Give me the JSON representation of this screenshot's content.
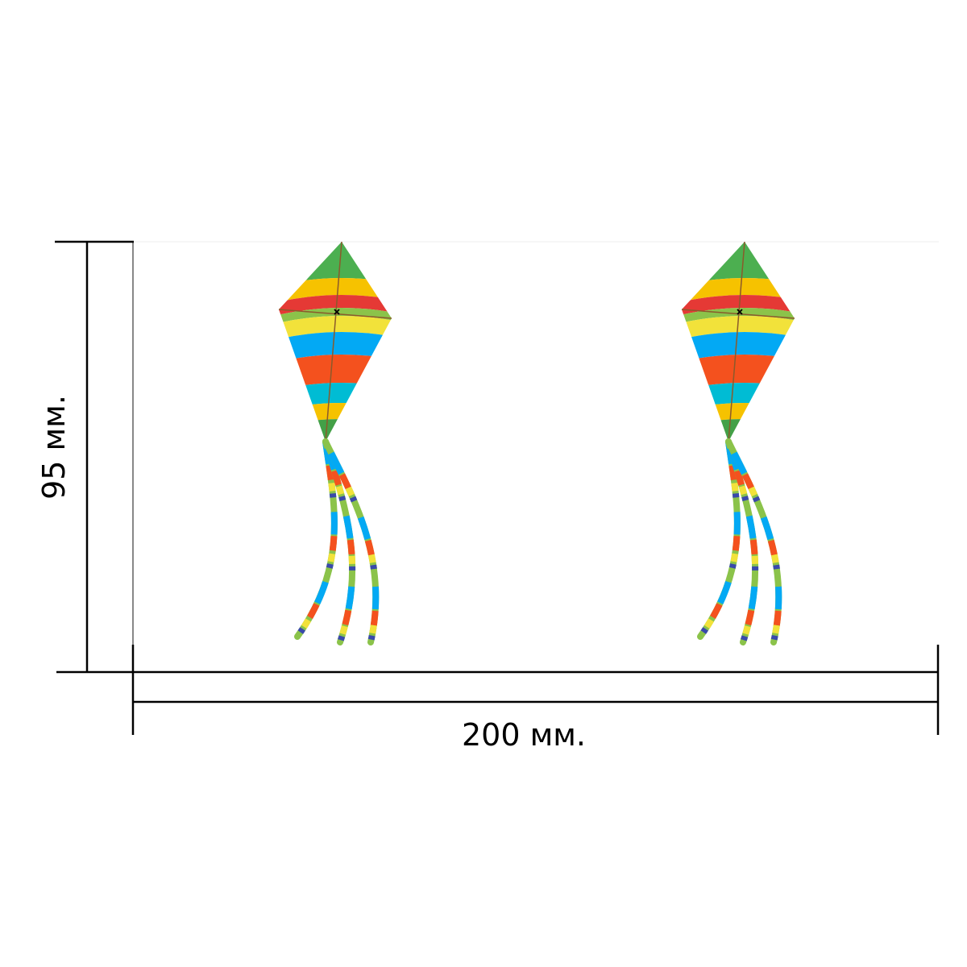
{
  "dimensions": {
    "height_label": "95 мм.",
    "width_label": "200 мм."
  },
  "kites": [
    {
      "name": "left-kite"
    },
    {
      "name": "right-kite"
    }
  ],
  "colors": {
    "dimension_line": "#000000",
    "frame_stroke": "#111111",
    "spar": "#8b5a2b",
    "bands": [
      "#4caf50",
      "#f6c200",
      "#e53935",
      "#8bc34a",
      "#f2e23a",
      "#03a9f4",
      "#f4511e",
      "#00bcd4",
      "#f6c200",
      "#43a047"
    ],
    "tail": [
      "#8bc34a",
      "#03a9f4",
      "#f4511e",
      "#f2e23a",
      "#3949ab"
    ]
  }
}
